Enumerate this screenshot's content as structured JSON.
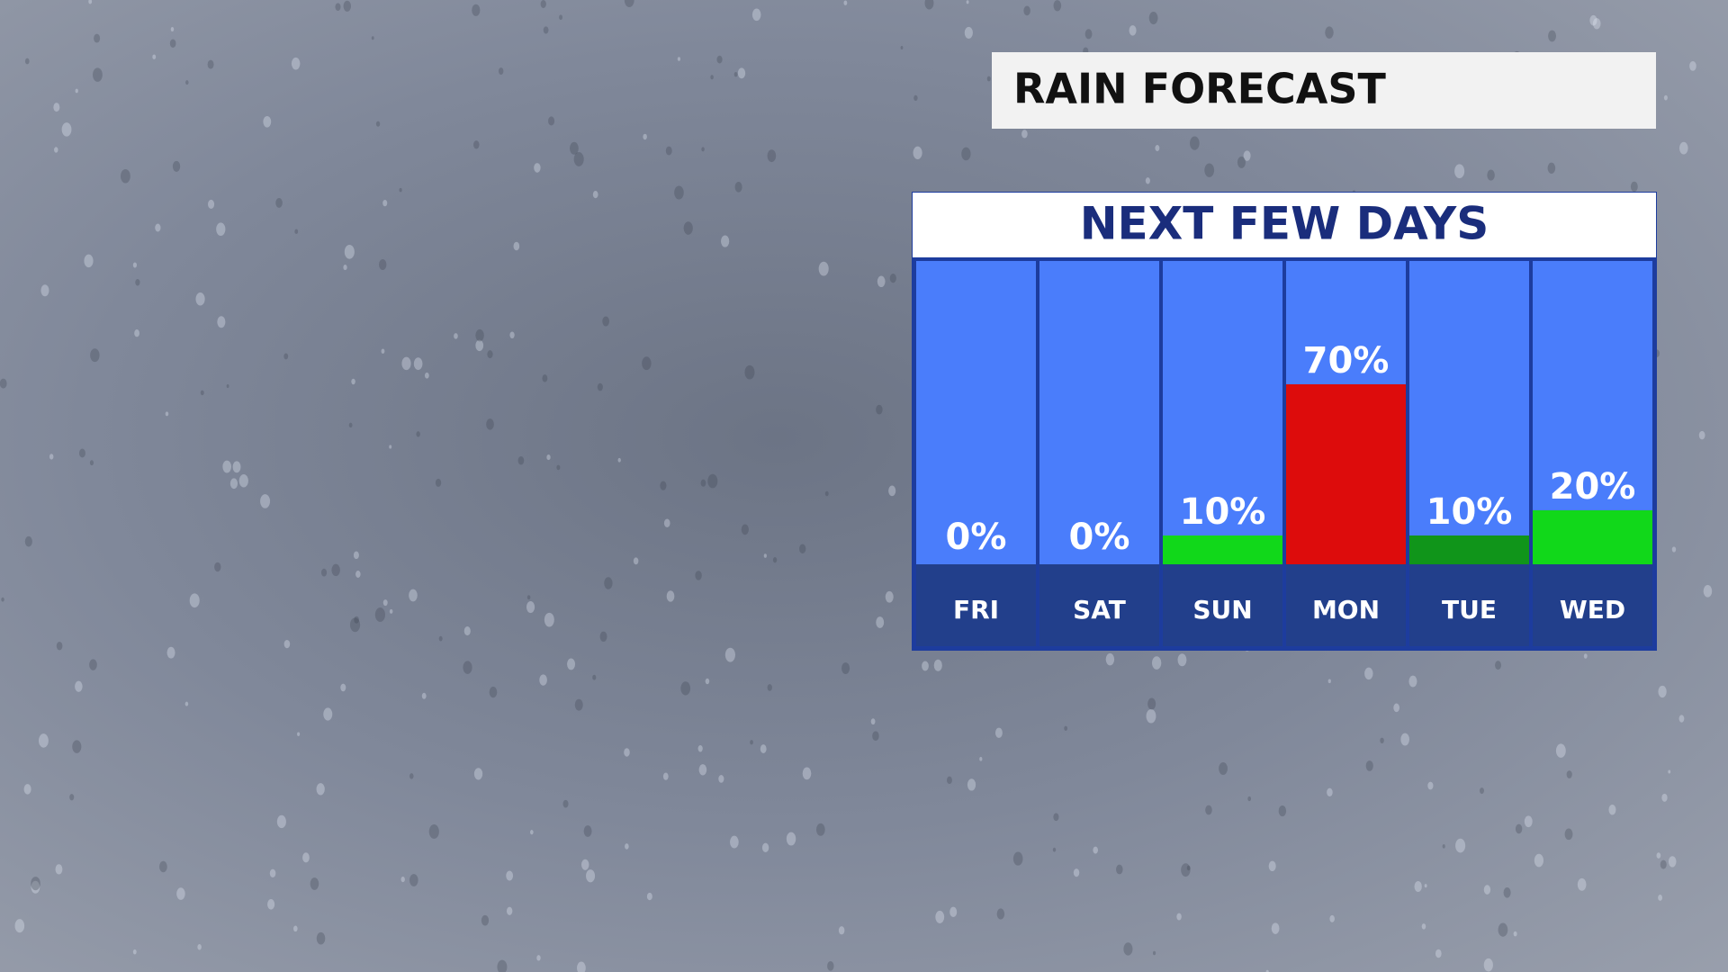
{
  "header": {
    "title": "RAIN FORECAST"
  },
  "chart_data": {
    "type": "bar",
    "title": "NEXT FEW DAYS",
    "categories": [
      "FRI",
      "SAT",
      "SUN",
      "MON",
      "TUE",
      "WED"
    ],
    "values": [
      0,
      0,
      10,
      70,
      10,
      20
    ],
    "value_labels": [
      "0%",
      "0%",
      "10%",
      "70%",
      "10%",
      "20%"
    ],
    "colors": [
      "#ffffff",
      "#ffffff",
      "#11d81a",
      "#dd0c0c",
      "#10951a",
      "#11d81a"
    ]
  }
}
